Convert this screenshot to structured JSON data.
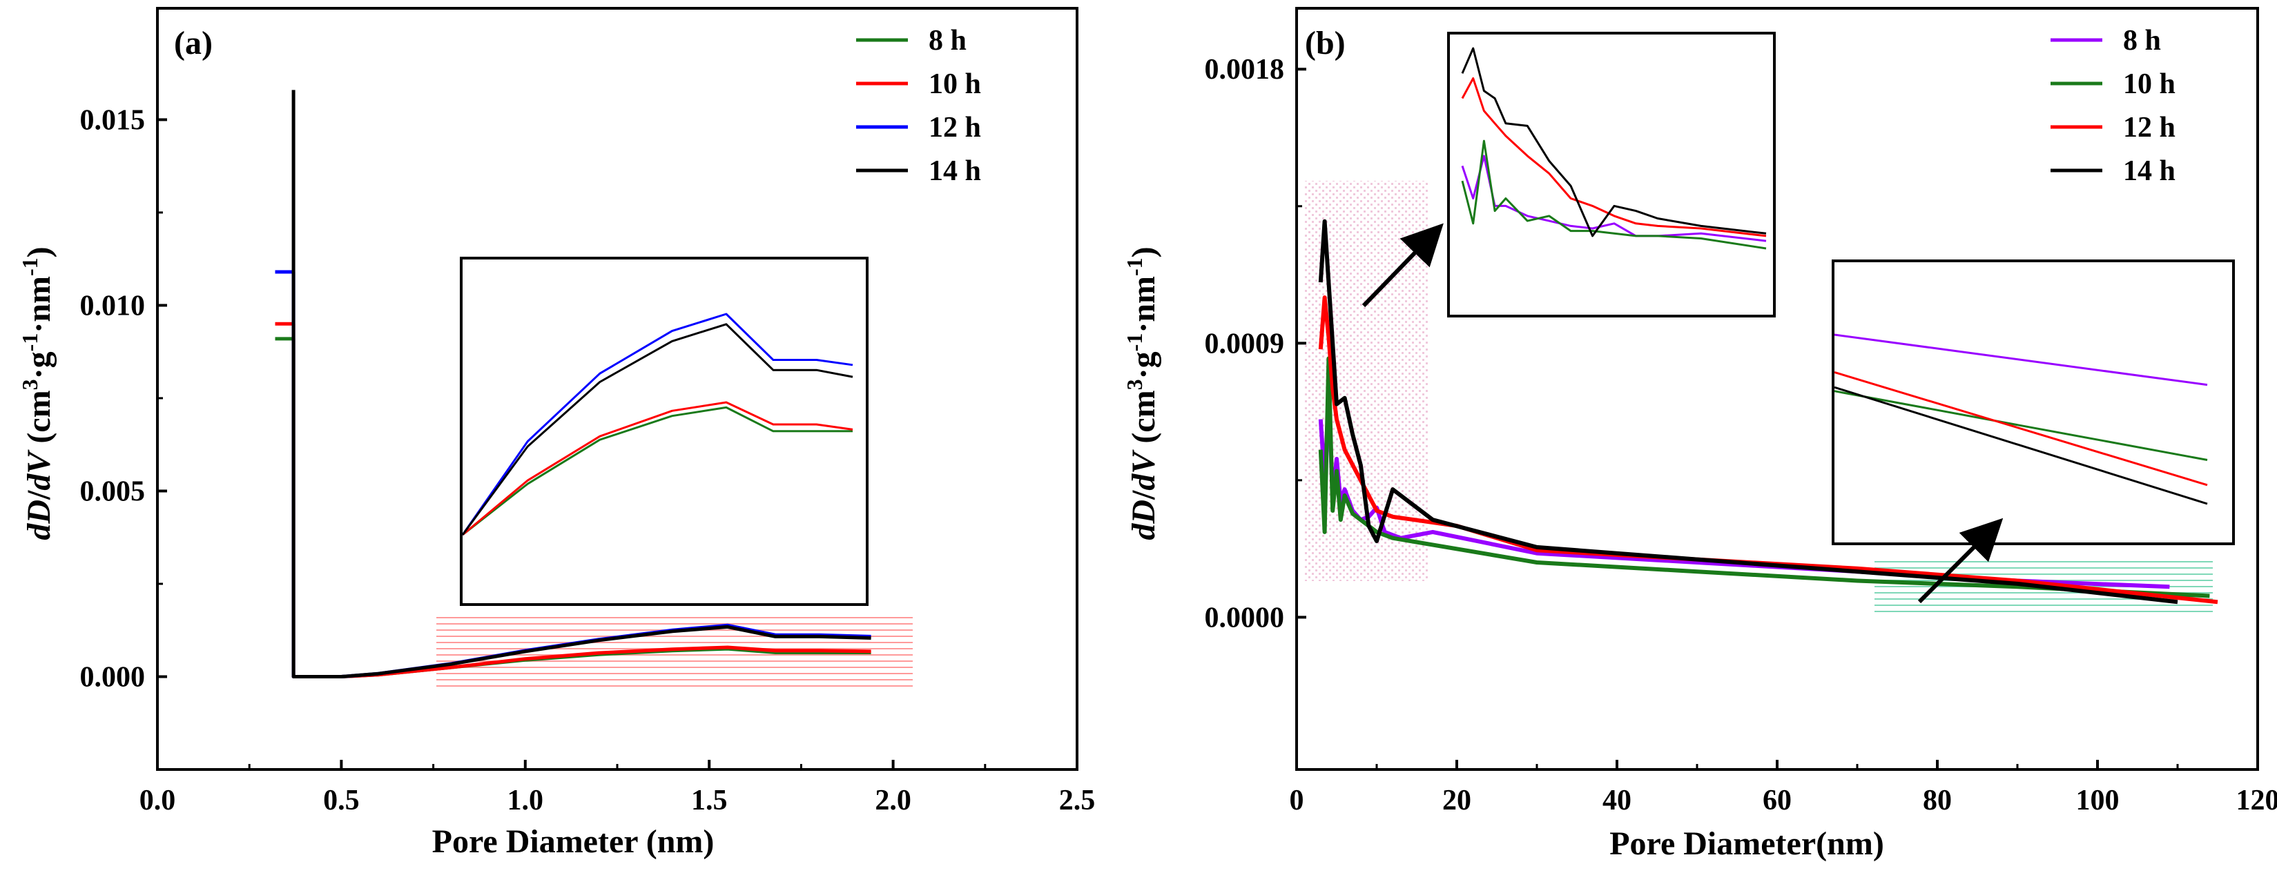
{
  "colors": {
    "green": "#1a7a1a",
    "red": "#ff0000",
    "blue": "#0000ff",
    "black": "#000000",
    "purple": "#9900ff",
    "hatch_red": "#ff8080",
    "hatch_pink": "#f2c4d8",
    "hatch_teal": "#70d0b0"
  },
  "chart_data": [
    {
      "type": "line",
      "panel_label": "(a)",
      "xlabel": "Pore Diameter (nm)",
      "ylabel_parts": {
        "dD": "dD",
        "slash": "/",
        "dV": "dV",
        "open": " (cm",
        "sup3": "3",
        "mid": "·g",
        "supm1": "-1",
        "mid2": "·nm",
        "supm1b": "-1",
        "close": ")"
      },
      "xlim": [
        0.0,
        2.5
      ],
      "ylim": [
        -0.0025,
        0.018
      ],
      "xticks": [
        0.0,
        0.5,
        1.0,
        1.5,
        2.0,
        2.5
      ],
      "xtick_labels": [
        "0.0",
        "0.5",
        "1.0",
        "1.5",
        "2.0",
        "2.5"
      ],
      "yticks": [
        0.0,
        0.005,
        0.01,
        0.015
      ],
      "ytick_labels": [
        "0.000",
        "0.005",
        "0.010",
        "0.015"
      ],
      "legend_position": "top-right",
      "series": [
        {
          "name": "8 h",
          "color_key": "green",
          "x": [
            0.32,
            0.37,
            0.37,
            0.5,
            0.6,
            0.8,
            1.0,
            1.2,
            1.4,
            1.55,
            1.68,
            1.8,
            1.94
          ],
          "y": [
            0.0091,
            0.0091,
            0.0,
            0.0,
            5e-05,
            0.00025,
            0.00045,
            0.0006,
            0.0007,
            0.00075,
            0.00065,
            0.00065,
            0.00065
          ]
        },
        {
          "name": "10 h",
          "color_key": "red",
          "x": [
            0.32,
            0.37,
            0.37,
            0.5,
            0.6,
            0.8,
            1.0,
            1.2,
            1.4,
            1.55,
            1.68,
            1.8,
            1.94
          ],
          "y": [
            0.0095,
            0.0095,
            0.0,
            0.0,
            5e-05,
            0.00025,
            0.00048,
            0.00064,
            0.00074,
            0.00079,
            0.0007,
            0.0007,
            0.00068
          ]
        },
        {
          "name": "12 h",
          "color_key": "blue",
          "x": [
            0.32,
            0.37,
            0.37,
            0.5,
            0.6,
            0.8,
            1.0,
            1.2,
            1.4,
            1.55,
            1.68,
            1.8,
            1.94
          ],
          "y": [
            0.0109,
            0.0109,
            0.0,
            0.0,
            8e-05,
            0.00035,
            0.0007,
            0.001,
            0.00125,
            0.00138,
            0.00112,
            0.00112,
            0.00108
          ]
        },
        {
          "name": "14 h",
          "color_key": "black",
          "x": [
            0.37,
            0.37,
            0.5,
            0.6,
            0.8,
            1.0,
            1.2,
            1.4,
            1.55,
            1.68,
            1.8,
            1.94
          ],
          "y": [
            0.0158,
            0.0,
            0.0,
            8e-05,
            0.00034,
            0.00068,
            0.00098,
            0.00122,
            0.00134,
            0.00108,
            0.00108,
            0.00104
          ]
        }
      ],
      "inset": {
        "x": [
          0.82,
          1.0,
          1.2,
          1.4,
          1.55,
          1.68,
          1.8,
          1.9
        ],
        "series": [
          {
            "name": "8 h",
            "color_key": "green",
            "y": [
              0.0,
              0.3,
              0.56,
              0.7,
              0.75,
              0.61,
              0.61,
              0.61
            ]
          },
          {
            "name": "10 h",
            "color_key": "red",
            "y": [
              0.0,
              0.32,
              0.58,
              0.73,
              0.78,
              0.65,
              0.65,
              0.62
            ]
          },
          {
            "name": "12 h",
            "color_key": "blue",
            "y": [
              0.0,
              0.55,
              0.95,
              1.2,
              1.3,
              1.03,
              1.03,
              1.0
            ]
          },
          {
            "name": "14 h",
            "color_key": "black",
            "y": [
              0.0,
              0.52,
              0.9,
              1.14,
              1.24,
              0.97,
              0.97,
              0.93
            ]
          }
        ]
      }
    },
    {
      "type": "line",
      "panel_label": "(b)",
      "xlabel": "Pore Diameter(nm)",
      "ylabel_parts": {
        "dD": "dD",
        "slash": "/",
        "dV": "dV",
        "open": " (cm",
        "sup3": "3",
        "mid": "·g",
        "supm1": "-1",
        "mid2": "·nm",
        "supm1b": "-1",
        "close": ")"
      },
      "xlim": [
        0,
        120
      ],
      "ylim": [
        -0.0005,
        0.002
      ],
      "xticks": [
        0,
        20,
        40,
        60,
        80,
        100,
        120
      ],
      "xtick_labels": [
        "0",
        "20",
        "40",
        "60",
        "80",
        "100",
        "120"
      ],
      "yticks": [
        0.0,
        0.0009,
        0.0018
      ],
      "ytick_labels": [
        "0.0000",
        "0.0009",
        "0.0018"
      ],
      "legend_position": "top-right",
      "series": [
        {
          "name": "8 h",
          "color_key": "purple",
          "x": [
            3,
            3.5,
            4,
            4.5,
            5,
            5.5,
            6,
            7,
            8,
            9,
            10,
            11,
            13,
            17,
            30,
            50,
            70,
            90,
            109
          ],
          "y": [
            0.00065,
            0.00045,
            0.00072,
            0.0004,
            0.00052,
            0.00038,
            0.00042,
            0.00035,
            0.00032,
            0.00033,
            0.00036,
            0.00028,
            0.00026,
            0.00028,
            0.00021,
            0.00018,
            0.00015,
            0.00012,
            0.0001
          ]
        },
        {
          "name": "10 h",
          "color_key": "green",
          "x": [
            3,
            3.5,
            4,
            4.5,
            5,
            5.5,
            6,
            7,
            8,
            9,
            10,
            12,
            30,
            50,
            70,
            90,
            114
          ],
          "y": [
            0.00055,
            0.00028,
            0.00085,
            0.00035,
            0.00048,
            0.00032,
            0.0004,
            0.00034,
            0.00032,
            0.0003,
            0.00028,
            0.00026,
            0.00018,
            0.00015,
            0.00012,
            0.0001,
            7e-05
          ]
        },
        {
          "name": "12 h",
          "color_key": "red",
          "x": [
            3,
            3.5,
            4,
            4.5,
            5,
            6,
            8,
            10,
            12,
            20,
            30,
            50,
            70,
            90,
            115
          ],
          "y": [
            0.00088,
            0.00105,
            0.00092,
            0.00075,
            0.00065,
            0.00055,
            0.00045,
            0.00035,
            0.00033,
            0.0003,
            0.00022,
            0.00019,
            0.00016,
            0.00012,
            5e-05
          ]
        },
        {
          "name": "14 h",
          "color_key": "black",
          "x": [
            3,
            3.5,
            4,
            4.5,
            5,
            6,
            7,
            8,
            9,
            10,
            12,
            17,
            30,
            50,
            70,
            90,
            110
          ],
          "y": [
            0.0011,
            0.0013,
            0.0011,
            0.0009,
            0.0007,
            0.00072,
            0.0006,
            0.0005,
            0.0003,
            0.00025,
            0.00042,
            0.00032,
            0.00023,
            0.00019,
            0.00015,
            0.00011,
            5e-05
          ]
        }
      ],
      "inset_left": {
        "x": [
          3,
          3.5,
          4,
          4.5,
          5,
          6,
          7,
          8,
          9,
          10,
          11,
          12,
          14,
          17
        ],
        "series": [
          {
            "name": "8 h",
            "color_key": "purple",
            "y": [
              0.58,
              0.45,
              0.62,
              0.42,
              0.42,
              0.38,
              0.36,
              0.34,
              0.33,
              0.35,
              0.3,
              0.3,
              0.31,
              0.28
            ]
          },
          {
            "name": "10 h",
            "color_key": "green",
            "y": [
              0.52,
              0.35,
              0.68,
              0.4,
              0.45,
              0.36,
              0.38,
              0.32,
              0.32,
              0.31,
              0.3,
              0.3,
              0.29,
              0.25
            ]
          },
          {
            "name": "12 h",
            "color_key": "red",
            "y": [
              0.85,
              0.93,
              0.8,
              0.75,
              0.7,
              0.62,
              0.55,
              0.45,
              0.42,
              0.38,
              0.35,
              0.34,
              0.33,
              0.3
            ]
          },
          {
            "name": "14 h",
            "color_key": "black",
            "y": [
              0.95,
              1.05,
              0.88,
              0.85,
              0.75,
              0.74,
              0.6,
              0.5,
              0.3,
              0.42,
              0.4,
              0.37,
              0.34,
              0.31
            ]
          }
        ]
      },
      "inset_right": {
        "x": [
          0,
          1
        ],
        "series": [
          {
            "name": "8 h",
            "color_key": "purple",
            "y": [
              1.0,
              0.6
            ]
          },
          {
            "name": "10 h",
            "color_key": "green",
            "y": [
              0.55,
              0.0
            ]
          },
          {
            "name": "12 h",
            "color_key": "red",
            "y": [
              0.7,
              -0.2
            ]
          },
          {
            "name": "14 h",
            "color_key": "black",
            "y": [
              0.58,
              -0.35
            ]
          }
        ]
      }
    }
  ]
}
